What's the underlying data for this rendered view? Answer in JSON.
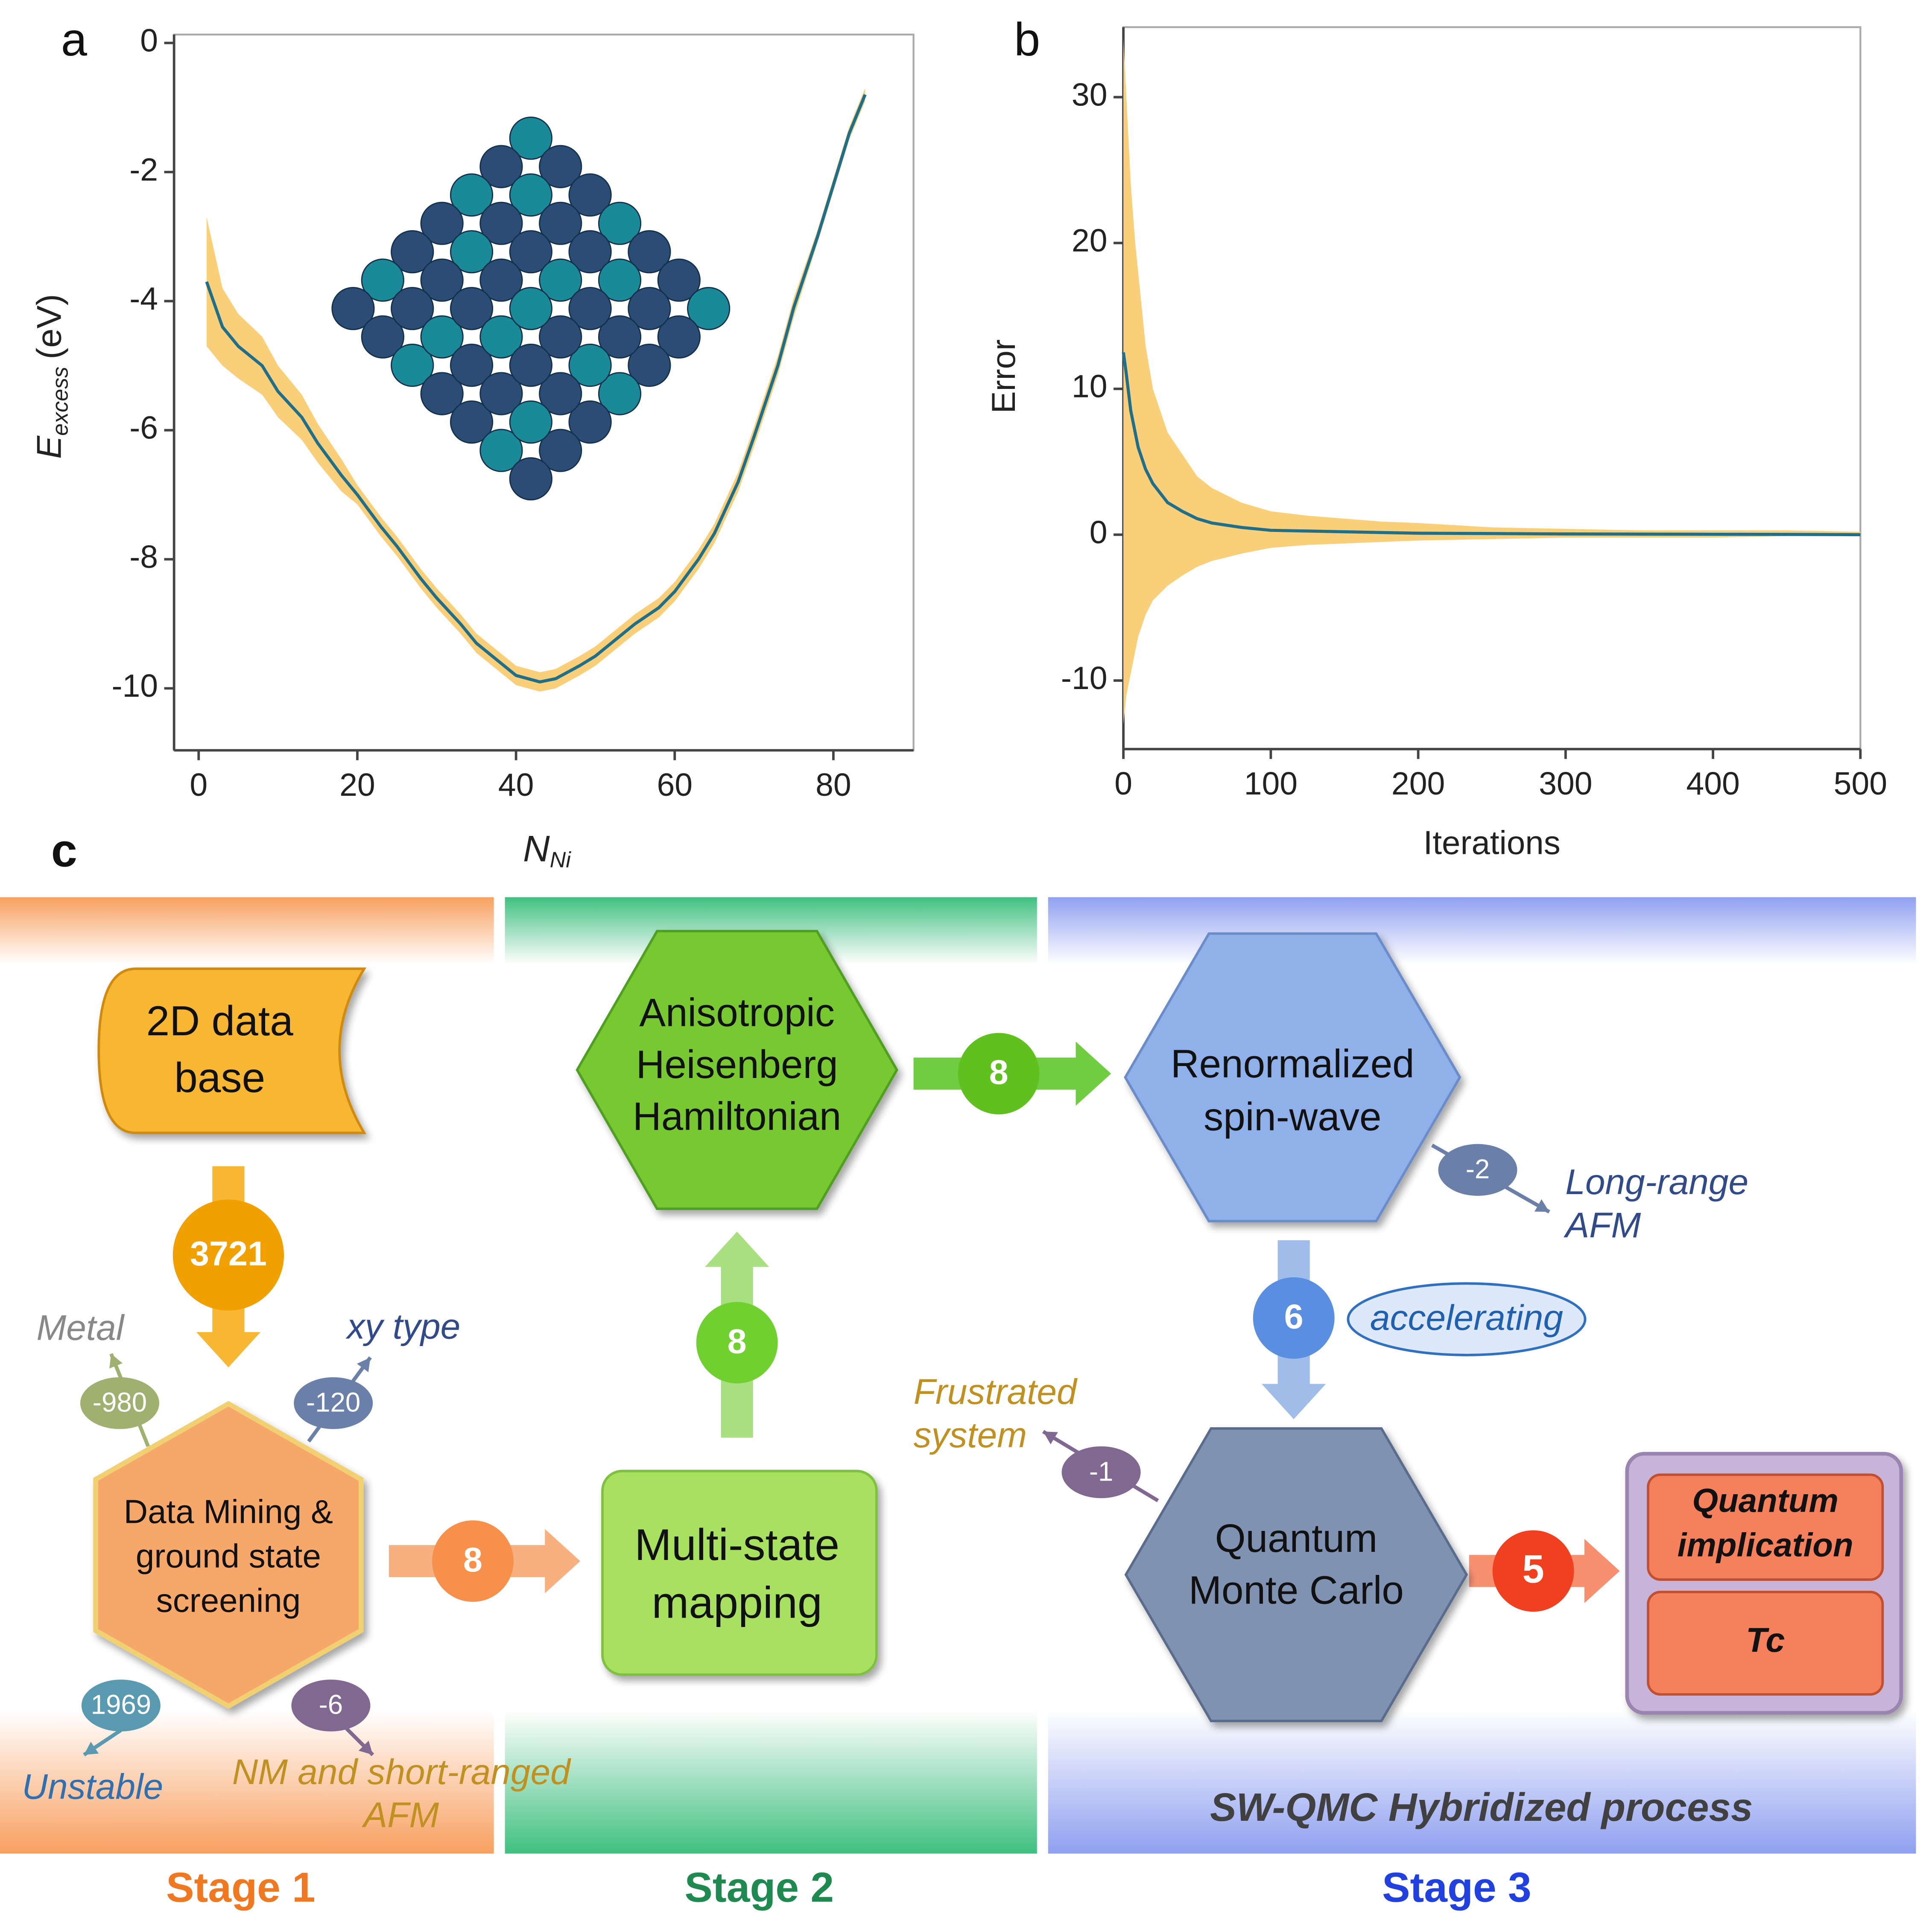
{
  "chart_data": [
    {
      "type": "line",
      "panel_label": "a",
      "xlabel": {
        "text": "N",
        "sub": "Ni"
      },
      "ylabel": {
        "text": "E",
        "sub": "excess",
        "unit": "(eV)"
      },
      "x": [
        1,
        3,
        5,
        8,
        10,
        13,
        15,
        18,
        20,
        23,
        25,
        28,
        30,
        33,
        35,
        38,
        40,
        43,
        45,
        48,
        50,
        53,
        55,
        58,
        60,
        63,
        65,
        68,
        70,
        73,
        75,
        78,
        80,
        82,
        84
      ],
      "values": [
        -3.7,
        -4.4,
        -4.7,
        -5.0,
        -5.4,
        -5.8,
        -6.2,
        -6.7,
        -7.0,
        -7.5,
        -7.8,
        -8.3,
        -8.6,
        -9.0,
        -9.3,
        -9.6,
        -9.8,
        -9.9,
        -9.85,
        -9.65,
        -9.5,
        -9.2,
        -9.0,
        -8.75,
        -8.5,
        -8.0,
        -7.6,
        -6.8,
        -6.1,
        -5.0,
        -4.1,
        -3.0,
        -2.2,
        -1.4,
        -0.8
      ],
      "band_upper": [
        -2.7,
        -3.8,
        -4.2,
        -4.55,
        -5.0,
        -5.45,
        -5.9,
        -6.45,
        -6.85,
        -7.35,
        -7.65,
        -8.15,
        -8.45,
        -8.85,
        -9.15,
        -9.45,
        -9.65,
        -9.75,
        -9.7,
        -9.5,
        -9.35,
        -9.05,
        -8.85,
        -8.6,
        -8.35,
        -7.85,
        -7.45,
        -6.65,
        -5.95,
        -4.85,
        -3.95,
        -2.9,
        -2.1,
        -1.3,
        -0.7
      ],
      "band_lower": [
        -4.7,
        -5.0,
        -5.2,
        -5.45,
        -5.8,
        -6.15,
        -6.5,
        -6.95,
        -7.15,
        -7.65,
        -7.95,
        -8.45,
        -8.75,
        -9.15,
        -9.45,
        -9.75,
        -9.95,
        -10.05,
        -10.0,
        -9.8,
        -9.65,
        -9.35,
        -9.15,
        -8.9,
        -8.65,
        -8.15,
        -7.75,
        -6.95,
        -6.25,
        -5.15,
        -4.25,
        -3.1,
        -2.3,
        -1.5,
        -0.9
      ],
      "color": "#1f6f8b",
      "band_color": "#f9cf7a",
      "xlim": [
        -3.1,
        90.1
      ],
      "xticks": [
        0,
        20,
        40,
        60,
        80
      ],
      "ylim": [
        -10.96,
        0.13
      ],
      "yticks": [
        0,
        -2,
        -4,
        -6,
        -8,
        -10
      ]
    },
    {
      "type": "line",
      "panel_label": "b",
      "xlabel": "Iterations",
      "ylabel": "Error",
      "x": [
        0,
        2,
        5,
        8,
        10,
        15,
        20,
        30,
        40,
        50,
        60,
        80,
        100,
        125,
        150,
        175,
        200,
        250,
        300,
        350,
        400,
        450,
        500
      ],
      "values": [
        12.5,
        11,
        8.5,
        7,
        6,
        4.5,
        3.5,
        2.2,
        1.6,
        1.1,
        0.8,
        0.5,
        0.3,
        0.25,
        0.2,
        0.15,
        0.1,
        0.08,
        0.05,
        0.04,
        0.03,
        0.02,
        0
      ],
      "band_upper": [
        34,
        30,
        24,
        20,
        18,
        13,
        10,
        7,
        5.5,
        4,
        3.2,
        2.2,
        1.6,
        1.3,
        1.1,
        0.9,
        0.8,
        0.5,
        0.4,
        0.3,
        0.3,
        0.3,
        0.2
      ],
      "band_lower": [
        -13,
        -11,
        -9.5,
        -8,
        -7,
        -5.5,
        -4.5,
        -3.5,
        -2.8,
        -2.2,
        -1.8,
        -1.3,
        -0.9,
        -0.7,
        -0.6,
        -0.5,
        -0.4,
        -0.3,
        -0.2,
        -0.2,
        -0.2,
        -0.1,
        -0.1
      ],
      "color": "#1f6f8b",
      "band_color": "#f9cf7a",
      "xlim": [
        0,
        500
      ],
      "xticks": [
        0,
        100,
        200,
        300,
        400,
        500
      ],
      "ylim": [
        -14.7,
        34.8
      ],
      "yticks": [
        -10,
        0,
        10,
        20,
        30
      ]
    }
  ],
  "diagram": {
    "panel_label": "c",
    "stages": [
      "Stage 1",
      "Stage 2",
      "Stage 3"
    ],
    "nodes": [
      {
        "lines": [
          "2D data",
          "base"
        ]
      },
      {
        "lines": [
          "Data Mining &",
          "ground state",
          "screening"
        ]
      },
      {
        "lines": [
          "Multi-state",
          "mapping"
        ]
      },
      {
        "lines": [
          "Anisotropic",
          "Heisenberg",
          "Hamiltonian"
        ]
      },
      {
        "lines": [
          "Renormalized",
          "spin-wave"
        ]
      },
      {
        "lines": [
          "Quantum",
          "Monte Carlo"
        ]
      },
      {
        "lines": [
          "Quantum",
          "implication"
        ]
      },
      {
        "lines": [
          "Tc"
        ]
      }
    ],
    "flows": [
      3721,
      8,
      8,
      8,
      6,
      5
    ],
    "branches": [
      {
        "count": -980,
        "lines": [
          "Metal"
        ]
      },
      {
        "count": -120,
        "lines": [
          "xy type"
        ]
      },
      {
        "count": 1969,
        "lines": [
          "Unstable"
        ]
      },
      {
        "count": -6,
        "lines": [
          "NM and short-ranged",
          "AFM"
        ]
      },
      {
        "count": -2,
        "lines": [
          "Long-range",
          "AFM"
        ]
      },
      {
        "count": -1,
        "lines": [
          "Frustrated",
          "system"
        ]
      }
    ],
    "note": "accelerating",
    "process": "SW-QMC Hybridized process"
  }
}
